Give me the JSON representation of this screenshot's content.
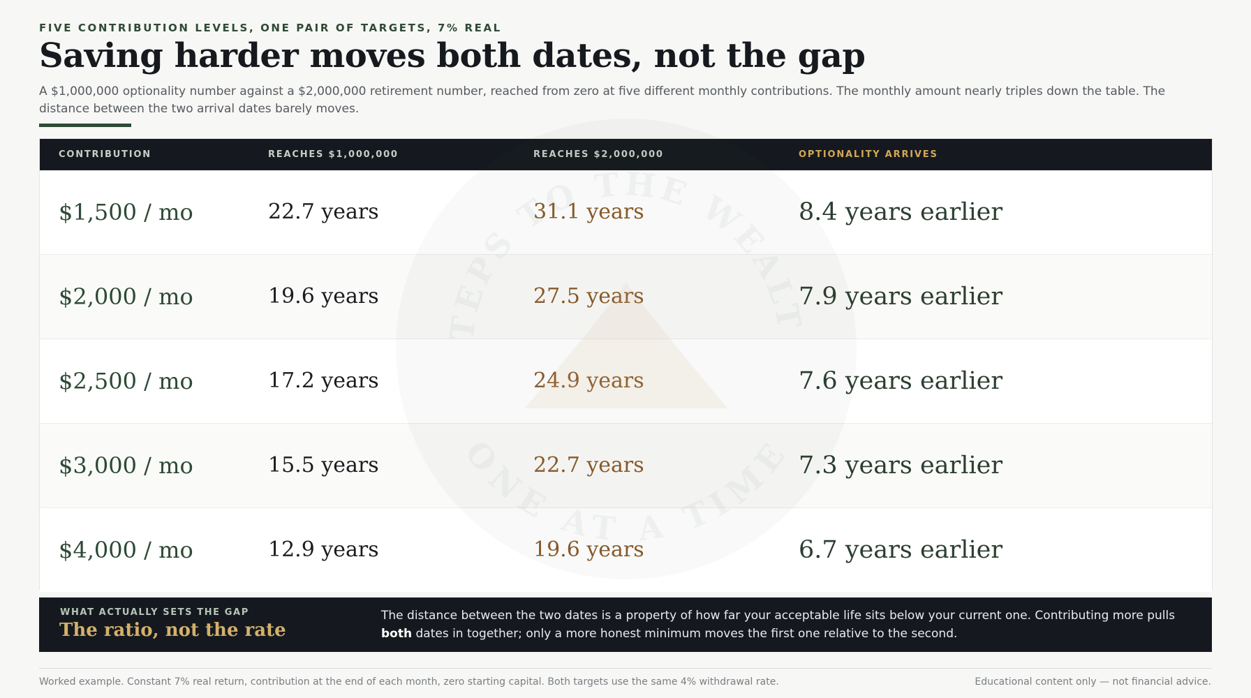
{
  "header": {
    "eyebrow": "FIVE CONTRIBUTION LEVELS, ONE PAIR OF TARGETS, 7% REAL",
    "title": "Saving harder moves both dates, not the gap",
    "subtitle": "A $1,000,000 optionality number against a $2,000,000 retirement number, reached from zero at five different monthly contributions. The monthly amount nearly triples down the table. The distance between the two arrival dates barely moves."
  },
  "watermark": {
    "top": "STEPS TO THE WEALTH",
    "bottom": "ONE AT A TIME"
  },
  "table": {
    "headers": [
      "CONTRIBUTION",
      "REACHES $1,000,000",
      "REACHES $2,000,000",
      "OPTIONALITY ARRIVES"
    ],
    "rows": [
      [
        "$1,500 / mo",
        "22.7 years",
        "31.1 years",
        "8.4 years earlier"
      ],
      [
        "$2,000 / mo",
        "19.6 years",
        "27.5 years",
        "7.9 years earlier"
      ],
      [
        "$2,500 / mo",
        "17.2 years",
        "24.9 years",
        "7.6 years earlier"
      ],
      [
        "$3,000 / mo",
        "15.5 years",
        "22.7 years",
        "7.3 years earlier"
      ],
      [
        "$4,000 / mo",
        "12.9 years",
        "19.6 years",
        "6.7 years earlier"
      ]
    ]
  },
  "callout": {
    "label": "WHAT ACTUALLY SETS THE GAP",
    "title": "The ratio, not the rate",
    "text": [
      "The distance between the two dates is a property of how far your acceptable life sits below your current one. Contributing more pulls ",
      "both",
      " dates in together; only a more honest minimum moves the first one relative to the second."
    ]
  },
  "footer": {
    "left": "Worked example. Constant 7% real return, contribution at the end of each month, zero starting capital. Both targets use the same 4% withdrawal rate.",
    "right": "Educational content only — not financial advice."
  }
}
